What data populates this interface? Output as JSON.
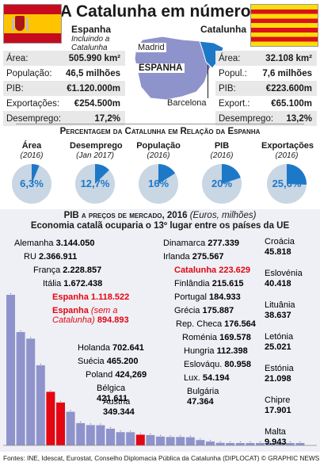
{
  "title": "A Catalunha em números",
  "spain": {
    "name": "Espanha",
    "note": "Incluindo a Catalunha",
    "stats": [
      {
        "label": "Área:",
        "value": "505.990 km²"
      },
      {
        "label": "População:",
        "value": "46,5 milhões"
      },
      {
        "label": "PIB:",
        "value": "€1.120.000m"
      },
      {
        "label": "Exportações:",
        "value": "€254.500m"
      },
      {
        "label": "Desemprego:",
        "value": "17,2%"
      }
    ]
  },
  "catalonia": {
    "name": "Catalunha",
    "stats": [
      {
        "label": "Área:",
        "value": "32.108 km²"
      },
      {
        "label": "Popul.:",
        "value": "7,6 milhões"
      },
      {
        "label": "PIB:",
        "value": "€223.600m"
      },
      {
        "label": "Export.:",
        "value": "€65.100m"
      },
      {
        "label": "Desemprego:",
        "value": "13,2%"
      }
    ]
  },
  "map": {
    "madrid": "Madrid",
    "country": "ESPANHA",
    "barcelona": "Barcelona"
  },
  "percent_section": {
    "title": "Percentagem da Catalunha em Relação da Espanha"
  },
  "bar_section": {
    "title": "PIB a preços de mercado, 2016",
    "title_units": "(Euros, milhões)",
    "subtitle": "Economia catalã ocuparia o 13º lugar entre os países da UE"
  },
  "footer": "Fontes: INE, Idescat, Eurostat, Conselho Diplomacia Pública da Catalunha (DIPLOCAT) © GRAPHIC NEWS",
  "colors": {
    "accent": "#1e78c8",
    "highlight": "#e30613",
    "bars": "#8f93cc",
    "pie_bg": "#c9d6e3"
  },
  "chart_data": [
    {
      "type": "pie",
      "series": [
        {
          "name": "Área",
          "year": "(2016)",
          "value": 6.3,
          "label": "6,3%"
        },
        {
          "name": "Desemprego",
          "year": "(Jan 2017)",
          "value": 12.7,
          "label": "12,7%"
        },
        {
          "name": "População",
          "year": "(2016)",
          "value": 16,
          "label": "16%"
        },
        {
          "name": "PIB",
          "year": "(2016)",
          "value": 20,
          "label": "20%"
        },
        {
          "name": "Exportações",
          "year": "(2016)",
          "value": 25.6,
          "label": "25,6%"
        }
      ]
    },
    {
      "type": "bar",
      "categories": [
        "Alemanha",
        "RU",
        "França",
        "Itália",
        "Espanha",
        "Espanha (sem a Catalunha)",
        "Holanda",
        "Suécia",
        "Poland",
        "Bélgica",
        "Áustria",
        "Dinamarca",
        "Irlanda",
        "Catalunha",
        "Finlândia",
        "Portugal",
        "Grécia",
        "Rep. Checa",
        "Roménia",
        "Hungria",
        "Eslováqu.",
        "Lux.",
        "Bulgária",
        "Croácia",
        "Eslovénia",
        "Lituânia",
        "Letónia",
        "Estónia",
        "Chipre",
        "Malta"
      ],
      "values": [
        3144050,
        2366911,
        2228857,
        1672438,
        1118522,
        894893,
        702641,
        465200,
        424269,
        421611,
        349344,
        277339,
        275567,
        223629,
        215615,
        184933,
        175887,
        176564,
        169578,
        112398,
        80958,
        54194,
        47364,
        45818,
        40418,
        38637,
        25021,
        21098,
        17901,
        9943
      ],
      "labels": [
        "3.144.050",
        "2.366.911",
        "2.228.857",
        "1.672.438",
        "1.118.522",
        "894.893",
        "702.641",
        "465.200",
        "424,269",
        "421.611",
        "349.344",
        "277.339",
        "275.567",
        "223.629",
        "215.615",
        "184.933",
        "175.887",
        "176.564",
        "169.578",
        "112.398",
        "80.958",
        "54.194",
        "47.364",
        "45.818",
        "40.418",
        "38.637",
        "25.021",
        "21.098",
        "17.901",
        "9.943"
      ],
      "highlight": [
        "Espanha",
        "Espanha (sem a Catalunha)",
        "Catalunha"
      ]
    }
  ]
}
